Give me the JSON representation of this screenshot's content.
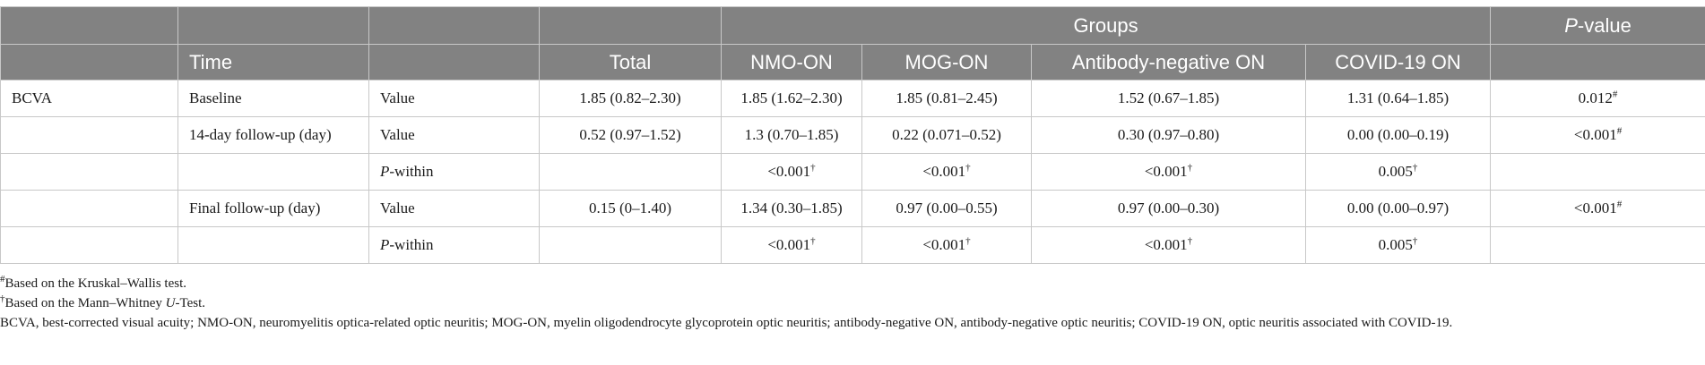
{
  "header": {
    "time": "Time",
    "total": "Total",
    "groups": "Groups",
    "group_cols": [
      "NMO-ON",
      "MOG-ON",
      "Antibody-negative ON",
      "COVID-19 ON"
    ],
    "pvalue_italic": "P",
    "pvalue_rest": "-value"
  },
  "rows": {
    "bcva": "BCVA",
    "baseline": {
      "time": "Baseline",
      "measure": "Value",
      "total": "1.85 (0.82–2.30)",
      "nmo": "1.85 (1.62–2.30)",
      "mog": "1.85 (0.81–2.45)",
      "abneg": "1.52 (0.67–1.85)",
      "covid": "1.31 (0.64–1.85)",
      "p": "0.012",
      "p_mark": "#"
    },
    "d14": {
      "time": "14-day follow-up (day)",
      "measure": "Value",
      "total": "0.52 (0.97–1.52)",
      "nmo": "1.3 (0.70–1.85)",
      "mog": "0.22 (0.071–0.52)",
      "abneg": "0.30 (0.97–0.80)",
      "covid": "0.00 (0.00–0.19)",
      "p": "<0.001",
      "p_mark": "#",
      "within_italic": "P",
      "within_rest": "-within",
      "w_nmo": "<0.001",
      "w_mog": "<0.001",
      "w_abneg": "<0.001",
      "w_covid": "0.005",
      "dagger": "†"
    },
    "final": {
      "time": "Final follow-up (day)",
      "measure": "Value",
      "total": "0.15 (0–1.40)",
      "nmo": "1.34 (0.30–1.85)",
      "mog": "0.97 (0.00–0.55)",
      "abneg": "0.97 (0.00–0.30)",
      "covid": "0.00 (0.00–0.97)",
      "p": "<0.001",
      "p_mark": "#",
      "within_italic": "P",
      "within_rest": "-within",
      "w_nmo": "<0.001",
      "w_mog": "<0.001",
      "w_abneg": "<0.001",
      "w_covid": "0.005",
      "dagger": "†"
    }
  },
  "footnotes": {
    "f1_mark": "#",
    "f1_text": "Based on the Kruskal–Wallis test.",
    "f2_mark": "†",
    "f2_pre": "Based on the Mann–Whitney ",
    "f2_italic": "U",
    "f2_post": "-Test.",
    "f3_text": "BCVA, best-corrected visual acuity; NMO-ON, neuromyelitis optica-related optic neuritis; MOG-ON, myelin oligodendrocyte glycoprotein optic neuritis; antibody-negative ON, antibody-negative optic neuritis; COVID-19 ON, optic neuritis associated with COVID-19."
  },
  "colors": {
    "header_bg": "#828282",
    "header_text": "#ffffff",
    "border": "#c8c8c8"
  }
}
